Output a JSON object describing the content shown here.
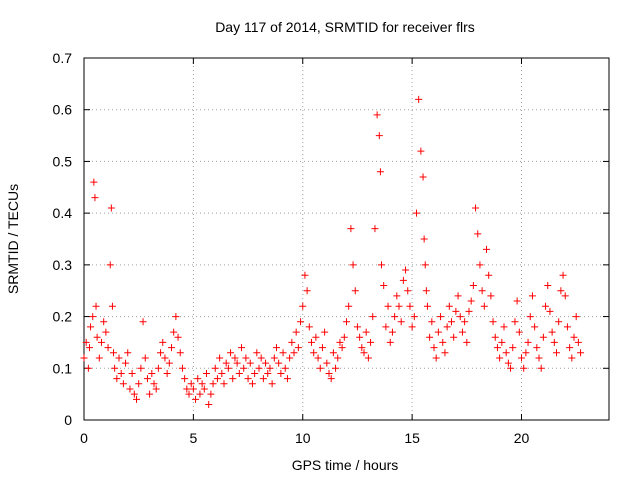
{
  "chart_data": {
    "type": "scatter",
    "title": "Day 117 of 2014, SRMTID for receiver flrs",
    "xlabel": "GPS time / hours",
    "ylabel": "SRMTID / TECUs",
    "xlim": [
      0,
      24
    ],
    "ylim": [
      0,
      0.7
    ],
    "xticks": [
      0,
      5,
      10,
      15,
      20
    ],
    "xtick_labels": [
      "0",
      "5",
      "10",
      "15",
      "20"
    ],
    "yticks": [
      0,
      0.1,
      0.2,
      0.3,
      0.4,
      0.5,
      0.6,
      0.7
    ],
    "ytick_labels": [
      "0",
      "0.1",
      "0.2",
      "0.3",
      "0.4",
      "0.5",
      "0.6",
      "0.7"
    ],
    "grid": true,
    "marker": "+",
    "color": "#ff0000",
    "series": [
      {
        "name": "SRMTID",
        "x": [
          0.0,
          0.1,
          0.2,
          0.25,
          0.3,
          0.4,
          0.45,
          0.5,
          0.55,
          0.6,
          0.7,
          0.8,
          0.9,
          1.0,
          1.1,
          1.2,
          1.25,
          1.3,
          1.35,
          1.4,
          1.5,
          1.6,
          1.7,
          1.8,
          1.9,
          2.0,
          2.1,
          2.2,
          2.3,
          2.4,
          2.5,
          2.6,
          2.7,
          2.8,
          2.9,
          3.0,
          3.1,
          3.2,
          3.3,
          3.4,
          3.5,
          3.6,
          3.7,
          3.8,
          3.9,
          4.0,
          4.1,
          4.2,
          4.3,
          4.4,
          4.5,
          4.6,
          4.7,
          4.8,
          4.9,
          5.0,
          5.1,
          5.2,
          5.3,
          5.4,
          5.5,
          5.6,
          5.7,
          5.8,
          5.9,
          6.0,
          6.1,
          6.2,
          6.3,
          6.4,
          6.5,
          6.6,
          6.7,
          6.8,
          6.9,
          7.0,
          7.1,
          7.2,
          7.3,
          7.4,
          7.5,
          7.6,
          7.7,
          7.8,
          7.9,
          8.0,
          8.1,
          8.2,
          8.3,
          8.4,
          8.5,
          8.6,
          8.7,
          8.8,
          8.9,
          9.0,
          9.1,
          9.2,
          9.3,
          9.4,
          9.5,
          9.6,
          9.7,
          9.8,
          9.9,
          10.0,
          10.1,
          10.2,
          10.3,
          10.4,
          10.5,
          10.6,
          10.7,
          10.8,
          10.9,
          11.0,
          11.1,
          11.2,
          11.3,
          11.4,
          11.5,
          11.6,
          11.7,
          11.8,
          11.9,
          12.0,
          12.1,
          12.2,
          12.3,
          12.4,
          12.5,
          12.6,
          12.7,
          12.8,
          12.9,
          13.0,
          13.1,
          13.2,
          13.3,
          13.4,
          13.5,
          13.55,
          13.6,
          13.7,
          13.8,
          13.9,
          14.0,
          14.1,
          14.2,
          14.3,
          14.4,
          14.5,
          14.6,
          14.7,
          14.8,
          14.9,
          15.0,
          15.1,
          15.2,
          15.3,
          15.4,
          15.5,
          15.55,
          15.6,
          15.65,
          15.7,
          15.8,
          15.9,
          16.0,
          16.1,
          16.2,
          16.3,
          16.4,
          16.5,
          16.6,
          16.7,
          16.8,
          16.9,
          17.0,
          17.1,
          17.2,
          17.3,
          17.4,
          17.5,
          17.6,
          17.7,
          17.8,
          17.9,
          18.0,
          18.1,
          18.2,
          18.3,
          18.4,
          18.5,
          18.6,
          18.7,
          18.8,
          18.9,
          19.0,
          19.1,
          19.2,
          19.3,
          19.4,
          19.5,
          19.6,
          19.7,
          19.8,
          19.9,
          20.0,
          20.1,
          20.2,
          20.3,
          20.4,
          20.5,
          20.6,
          20.7,
          20.8,
          20.9,
          21.0,
          21.1,
          21.2,
          21.3,
          21.4,
          21.5,
          21.6,
          21.7,
          21.8,
          21.9,
          22.0,
          22.1,
          22.2,
          22.3,
          22.4,
          22.5,
          22.6,
          22.7
        ],
        "y": [
          0.12,
          0.15,
          0.1,
          0.14,
          0.18,
          0.2,
          0.46,
          0.43,
          0.22,
          0.16,
          0.12,
          0.15,
          0.19,
          0.17,
          0.14,
          0.3,
          0.41,
          0.22,
          0.13,
          0.1,
          0.08,
          0.12,
          0.09,
          0.07,
          0.11,
          0.13,
          0.06,
          0.09,
          0.05,
          0.04,
          0.07,
          0.1,
          0.19,
          0.12,
          0.08,
          0.05,
          0.09,
          0.07,
          0.06,
          0.1,
          0.13,
          0.15,
          0.12,
          0.09,
          0.11,
          0.14,
          0.17,
          0.2,
          0.16,
          0.13,
          0.1,
          0.08,
          0.06,
          0.05,
          0.07,
          0.06,
          0.04,
          0.08,
          0.05,
          0.07,
          0.06,
          0.09,
          0.03,
          0.05,
          0.07,
          0.1,
          0.08,
          0.12,
          0.09,
          0.07,
          0.11,
          0.1,
          0.13,
          0.08,
          0.12,
          0.11,
          0.09,
          0.14,
          0.1,
          0.12,
          0.08,
          0.11,
          0.07,
          0.09,
          0.13,
          0.1,
          0.12,
          0.08,
          0.11,
          0.09,
          0.1,
          0.07,
          0.12,
          0.14,
          0.11,
          0.09,
          0.13,
          0.1,
          0.08,
          0.12,
          0.15,
          0.13,
          0.17,
          0.14,
          0.19,
          0.22,
          0.28,
          0.25,
          0.18,
          0.15,
          0.13,
          0.16,
          0.12,
          0.1,
          0.14,
          0.17,
          0.11,
          0.09,
          0.08,
          0.13,
          0.1,
          0.12,
          0.15,
          0.14,
          0.16,
          0.19,
          0.22,
          0.37,
          0.3,
          0.25,
          0.18,
          0.16,
          0.14,
          0.13,
          0.17,
          0.12,
          0.15,
          0.2,
          0.37,
          0.59,
          0.55,
          0.48,
          0.3,
          0.26,
          0.18,
          0.22,
          0.15,
          0.17,
          0.2,
          0.24,
          0.22,
          0.19,
          0.27,
          0.29,
          0.25,
          0.22,
          0.18,
          0.2,
          0.4,
          0.62,
          0.52,
          0.47,
          0.35,
          0.3,
          0.25,
          0.22,
          0.16,
          0.19,
          0.14,
          0.12,
          0.17,
          0.2,
          0.15,
          0.13,
          0.18,
          0.22,
          0.19,
          0.16,
          0.21,
          0.24,
          0.2,
          0.17,
          0.19,
          0.15,
          0.21,
          0.23,
          0.26,
          0.41,
          0.36,
          0.3,
          0.25,
          0.22,
          0.33,
          0.28,
          0.24,
          0.19,
          0.16,
          0.14,
          0.12,
          0.15,
          0.18,
          0.13,
          0.11,
          0.1,
          0.14,
          0.19,
          0.23,
          0.17,
          0.12,
          0.1,
          0.13,
          0.15,
          0.2,
          0.24,
          0.18,
          0.14,
          0.12,
          0.1,
          0.16,
          0.22,
          0.26,
          0.21,
          0.17,
          0.15,
          0.13,
          0.19,
          0.25,
          0.28,
          0.24,
          0.18,
          0.14,
          0.12,
          0.16,
          0.2,
          0.15,
          0.13
        ]
      }
    ]
  }
}
